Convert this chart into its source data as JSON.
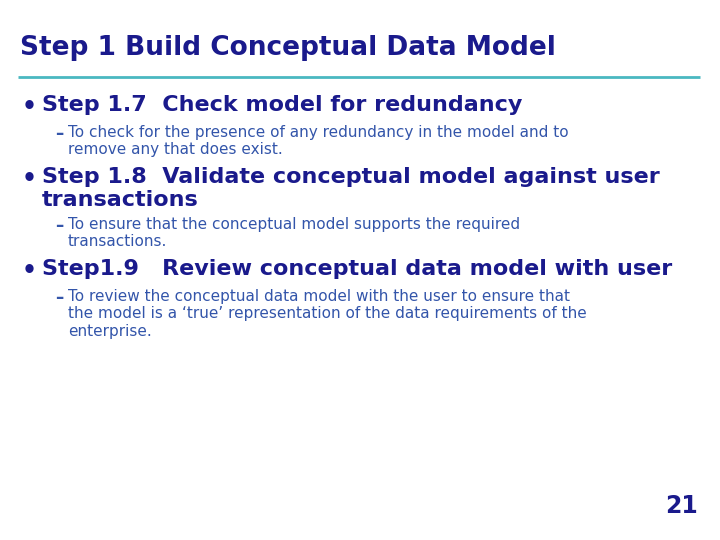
{
  "title": "Step 1 Build Conceptual Data Model",
  "title_color": "#1a1a8c",
  "line_color": "#4ab8c1",
  "background_color": "#ffffff",
  "page_number": "21",
  "page_number_color": "#1a1a8c",
  "bullet_color": "#1a1a8c",
  "dash_color": "#3355aa",
  "bullet_items": [
    {
      "bullet": "Step 1.7  Check model for redundancy",
      "sub": "To check for the presence of any redundancy in the model and to\nremove any that does exist."
    },
    {
      "bullet": "Step 1.8  Validate conceptual model against user\ntransactions",
      "sub": "To ensure that the conceptual model supports the required\ntransactions."
    },
    {
      "bullet": "Step1.9   Review conceptual data model with user",
      "sub": "To review the conceptual data model with the user to ensure that\nthe model is a ‘true’ representation of the data requirements of the\nenterprise."
    }
  ]
}
